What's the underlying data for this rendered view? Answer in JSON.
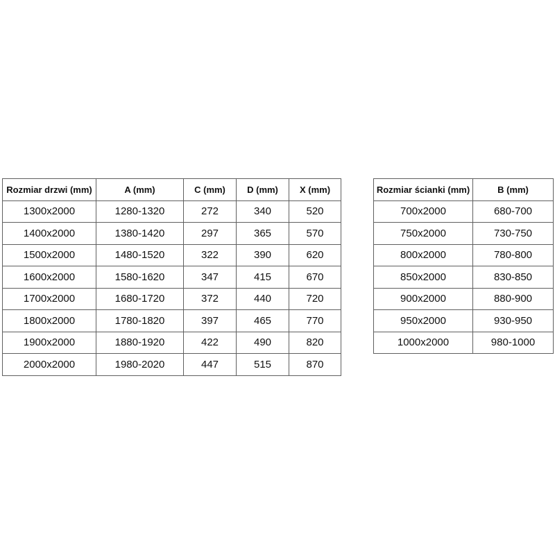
{
  "colors": {
    "background": "#ffffff",
    "table_border": "#5f5f5f",
    "text": "#111111"
  },
  "tables": [
    {
      "name": "door-dimensions",
      "headers": [
        "Rozmiar drzwi (mm)",
        "A (mm)",
        "C (mm)",
        "D (mm)",
        "X (mm)"
      ],
      "rows": [
        [
          "1300x2000",
          "1280-1320",
          "272",
          "340",
          "520"
        ],
        [
          "1400x2000",
          "1380-1420",
          "297",
          "365",
          "570"
        ],
        [
          "1500x2000",
          "1480-1520",
          "322",
          "390",
          "620"
        ],
        [
          "1600x2000",
          "1580-1620",
          "347",
          "415",
          "670"
        ],
        [
          "1700x2000",
          "1680-1720",
          "372",
          "440",
          "720"
        ],
        [
          "1800x2000",
          "1780-1820",
          "397",
          "465",
          "770"
        ],
        [
          "1900x2000",
          "1880-1920",
          "422",
          "490",
          "820"
        ],
        [
          "2000x2000",
          "1980-2020",
          "447",
          "515",
          "870"
        ]
      ]
    },
    {
      "name": "wall-dimensions",
      "headers": [
        "Rozmiar ścianki (mm)",
        "B (mm)"
      ],
      "rows": [
        [
          "700x2000",
          "680-700"
        ],
        [
          "750x2000",
          "730-750"
        ],
        [
          "800x2000",
          "780-800"
        ],
        [
          "850x2000",
          "830-850"
        ],
        [
          "900x2000",
          "880-900"
        ],
        [
          "950x2000",
          "930-950"
        ],
        [
          "1000x2000",
          "980-1000"
        ]
      ]
    }
  ]
}
